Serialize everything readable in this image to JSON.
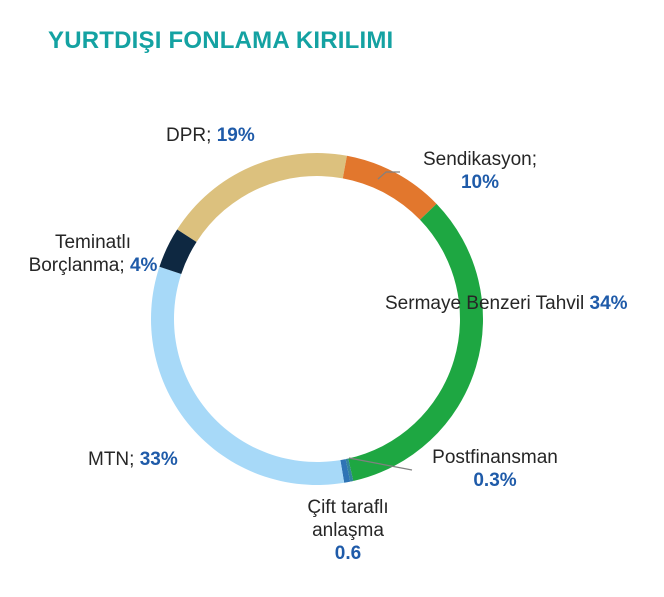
{
  "title": {
    "text": "YURTDIŞI FONLAMA KIRILIMI",
    "color": "#14A2A2"
  },
  "chart_data": {
    "type": "pie",
    "subtype": "donut",
    "title": "YURTDIŞI FONLAMA KIRILIMI",
    "rotation_deg": -57.4,
    "legend_position": "none",
    "segments": [
      {
        "id": "dpr",
        "label": "DPR",
        "value": 19,
        "unit": "%",
        "color": "#DCC17E"
      },
      {
        "id": "sendikasyon",
        "label": "Sendikasyon",
        "value": 10,
        "unit": "%",
        "color": "#E2772D"
      },
      {
        "id": "sermaye-benzeri-tahvil",
        "label": "Sermaye Benzeri Tahvil",
        "value": 34,
        "unit": "%",
        "color": "#1EA742"
      },
      {
        "id": "postfinansman",
        "label": "Postfinansman",
        "value": 0.3,
        "unit": "%",
        "color": "#31859C"
      },
      {
        "id": "cift-tarafli-anlasma",
        "label": "Çift taraflı anlaşma",
        "value": 0.6,
        "unit": "%",
        "color": "#2E74B5"
      },
      {
        "id": "mtn",
        "label": "MTN",
        "value": 33,
        "unit": "%",
        "color": "#A7D9F8"
      },
      {
        "id": "teminatli-borclanma",
        "label": "Teminatlı Borçlanma",
        "value": 4,
        "unit": "%",
        "color": "#0E2841"
      }
    ]
  },
  "labels": {
    "dpr": {
      "name": "DPR;",
      "value": "19%"
    },
    "sendikasyon": {
      "name": "Sendikasyon;",
      "value": "10%"
    },
    "sermaye": {
      "name": "Sermaye Benzeri Tahvil",
      "value": "34%"
    },
    "postfinansman": {
      "name": "Postfinansman",
      "value": "0.3%"
    },
    "cift": {
      "line1": "Çift taraflı",
      "line2": "anlaşma",
      "value": "0.6"
    },
    "mtn": {
      "name": "MTN;",
      "value": "33%"
    },
    "teminatli": {
      "line1": "Teminatlı",
      "line2": "Borçlanma;",
      "value": "4%"
    }
  },
  "colors": {
    "label_text": "#262626",
    "value_text": "#1F5BA9",
    "leader_line": "#808080",
    "background": "#FFFFFF"
  }
}
